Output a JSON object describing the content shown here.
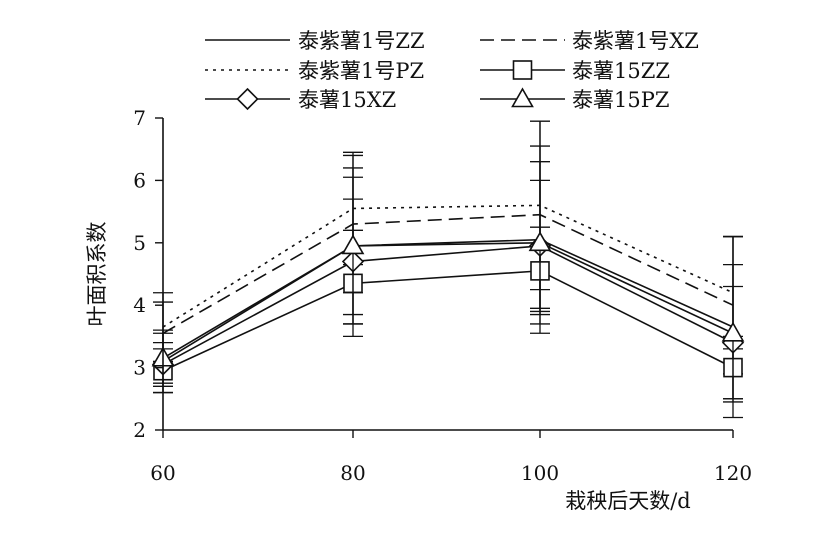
{
  "chart_data": {
    "type": "line",
    "title": "",
    "xlabel": "栽秧后天数/d",
    "ylabel": "叶面积系数",
    "x": [
      60,
      80,
      100,
      120
    ],
    "xlim": [
      60,
      120
    ],
    "ylim": [
      2,
      7
    ],
    "yticks": [
      2,
      3,
      4,
      5,
      6,
      7
    ],
    "xticks": [
      60,
      80,
      100,
      120
    ],
    "grid": false,
    "legend_position": "top",
    "series": [
      {
        "name": "泰紫薯1号ZZ",
        "values": [
          3.1,
          4.95,
          5.05,
          3.65
        ],
        "errors": [
          0.5,
          1.25,
          1.5,
          1.45
        ],
        "line_style": "solid",
        "marker": "none"
      },
      {
        "name": "泰紫薯1号XZ",
        "values": [
          3.55,
          5.3,
          5.45,
          4.0
        ],
        "errors": [
          0.5,
          1.1,
          1.5,
          1.1
        ],
        "line_style": "dashed",
        "marker": "none"
      },
      {
        "name": "泰紫薯1号PZ",
        "values": [
          3.65,
          5.55,
          5.6,
          4.2
        ],
        "errors": [
          0.55,
          0.9,
          1.35,
          0.9
        ],
        "line_style": "dotted",
        "marker": "none"
      },
      {
        "name": "泰薯15ZZ",
        "values": [
          2.95,
          4.35,
          4.55,
          3.0
        ],
        "errors": [
          0.35,
          0.85,
          0.7,
          0.5
        ],
        "line_style": "solid",
        "marker": "square"
      },
      {
        "name": "泰薯15XZ",
        "values": [
          3.05,
          4.7,
          4.95,
          3.4
        ],
        "errors": [
          0.35,
          1.0,
          1.05,
          0.9
        ],
        "line_style": "solid",
        "marker": "diamond"
      },
      {
        "name": "泰薯15PZ",
        "values": [
          3.15,
          4.95,
          5.0,
          3.55
        ],
        "errors": [
          0.4,
          1.1,
          1.3,
          1.1
        ],
        "line_style": "solid",
        "marker": "triangle"
      }
    ]
  }
}
